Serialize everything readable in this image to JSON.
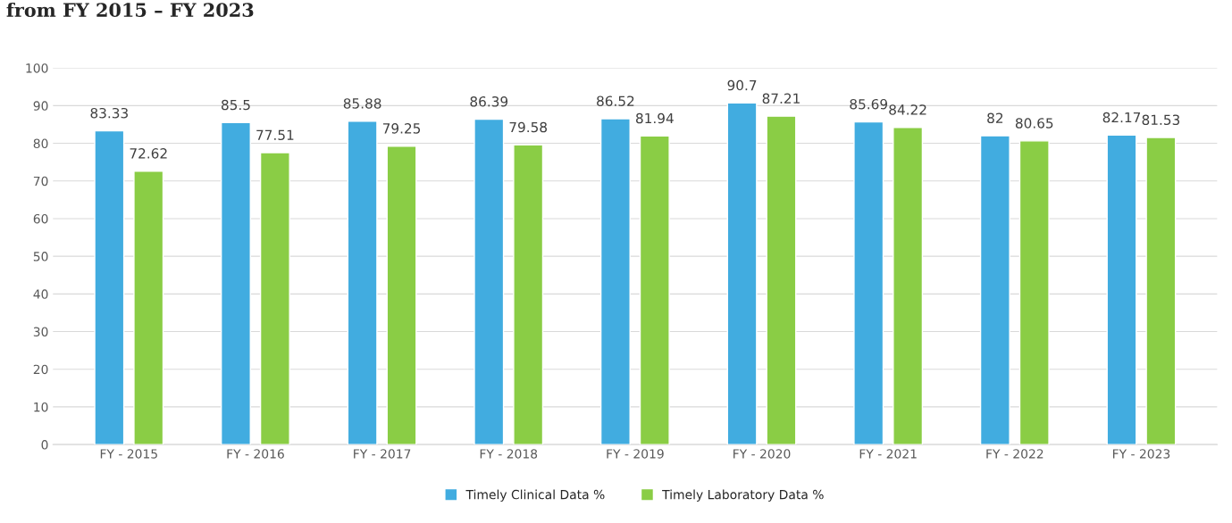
{
  "chart_data": {
    "type": "bar",
    "title": "from FY 2015 – FY 2023",
    "categories": [
      "FY - 2015",
      "FY - 2016",
      "FY - 2017",
      "FY - 2018",
      "FY - 2019",
      "FY - 2020",
      "FY - 2021",
      "FY - 2022",
      "FY - 2023"
    ],
    "series": [
      {
        "name": "Timely Clinical Data %",
        "color": "#41ace0",
        "values": [
          83.33,
          85.5,
          85.88,
          86.39,
          86.52,
          90.7,
          85.69,
          82,
          82.17
        ]
      },
      {
        "name": "Timely Laboratory Data %",
        "color": "#8acd45",
        "values": [
          72.62,
          77.51,
          79.25,
          79.58,
          81.94,
          87.21,
          84.22,
          80.65,
          81.53
        ]
      }
    ],
    "ylim": [
      0,
      100
    ],
    "yticks": [
      0,
      10,
      20,
      30,
      40,
      50,
      60,
      70,
      80,
      90,
      100
    ],
    "grid": "y",
    "legend": "bottom",
    "data_labels": true
  }
}
